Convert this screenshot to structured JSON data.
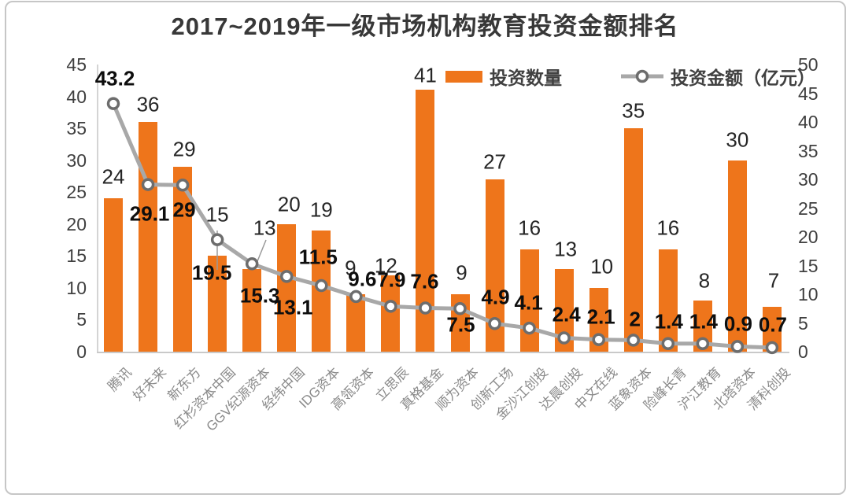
{
  "title": "2017~2019年一级市场机构教育投资金额排名",
  "legend": {
    "bar_label": "投资数量",
    "line_label": "投资金额（亿元）"
  },
  "colors": {
    "bar": "#ee751b",
    "line": "#a8a8a8",
    "marker_ring": "#6d6d6d",
    "marker_fill": "#ffffff",
    "leader_line": "#9a9a9a"
  },
  "chart_data": {
    "type": "bar",
    "subtype": "combo-bar-line-dual-axis",
    "title": "2017~2019年一级市场机构教育投资金额排名",
    "categories": [
      "腾讯",
      "好未来",
      "新东方",
      "红杉资本中国",
      "GGV纪源资本",
      "经纬中国",
      "IDG资本",
      "高瓴资本",
      "立思辰",
      "真格基金",
      "顺为资本",
      "创新工场",
      "金沙江创投",
      "达晨创投",
      "中文在线",
      "蓝象资本",
      "险峰长青",
      "沪江教育",
      "北塔资本",
      "清科创投"
    ],
    "series": [
      {
        "name": "投资数量",
        "type": "bar",
        "axis": "left",
        "values": [
          24,
          36,
          29,
          15,
          13,
          20,
          19,
          9,
          12,
          41,
          9,
          27,
          16,
          13,
          10,
          35,
          16,
          8,
          30,
          7
        ]
      },
      {
        "name": "投资金额（亿元）",
        "type": "line",
        "axis": "right",
        "values": [
          43.2,
          29.1,
          29,
          19.5,
          15.3,
          13.1,
          11.5,
          9.6,
          7.9,
          7.6,
          7.5,
          4.9,
          4.1,
          2.4,
          2.1,
          2,
          1.4,
          1.4,
          0.9,
          0.7
        ]
      }
    ],
    "left_axis": {
      "min": 0,
      "max": 45,
      "step": 5
    },
    "right_axis": {
      "min": 0,
      "max": 50,
      "step": 5
    },
    "grid": false,
    "legend_position": "top",
    "data_labels": true
  }
}
